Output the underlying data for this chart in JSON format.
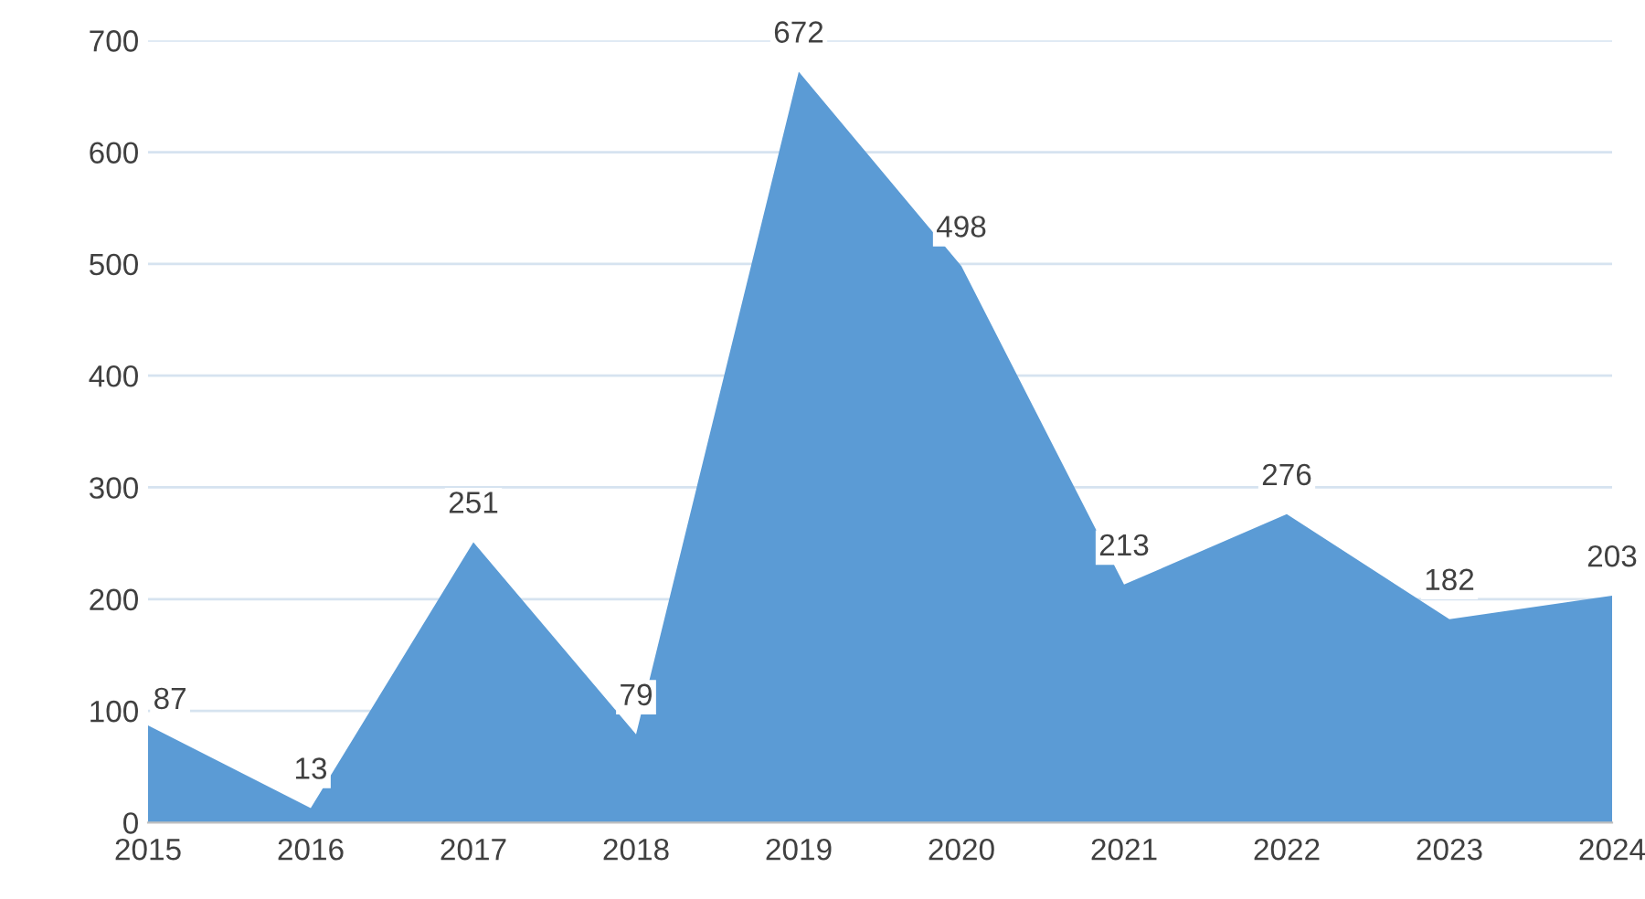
{
  "chart_data": {
    "type": "area",
    "categories": [
      "2015",
      "2016",
      "2017",
      "2018",
      "2019",
      "2020",
      "2021",
      "2022",
      "2023",
      "2024"
    ],
    "series": [
      {
        "color": "#5b9bd5",
        "values": [
          87,
          13,
          251,
          79,
          672,
          498,
          213,
          276,
          182,
          203
        ]
      }
    ],
    "ylim": [
      0,
      700
    ],
    "yticks": [
      0,
      100,
      200,
      300,
      400,
      500,
      600,
      700
    ],
    "grid": "y",
    "data_labels": true
  }
}
